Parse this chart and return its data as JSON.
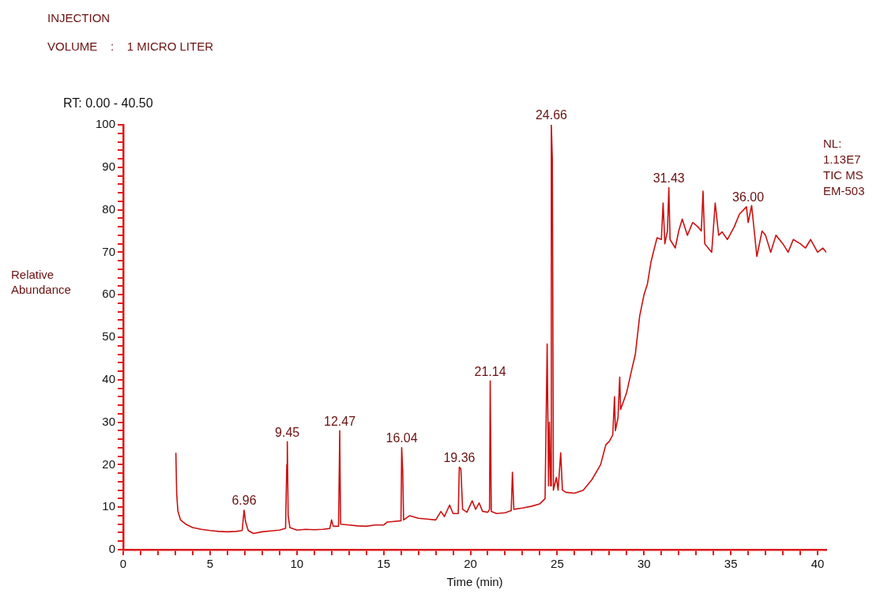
{
  "chart_data": {
    "type": "line",
    "title": "INJECTION",
    "subtitle": "VOLUME    :    1 MICRO LITER",
    "xlabel": "Time (min)",
    "ylabel": "Relative Abundance",
    "xlim": [
      0,
      40.5
    ],
    "ylim": [
      0,
      100
    ],
    "xticks": [
      0,
      {
        "value": 1,
        "label": null
      },
      {
        "value": 2,
        "label": null
      },
      {
        "value": 3,
        "label": null
      },
      {
        "value": 4,
        "label": null
      },
      5,
      {
        "value": 6,
        "label": null
      },
      {
        "value": 7,
        "label": null
      },
      {
        "value": 8,
        "label": null
      },
      {
        "value": 9,
        "label": null
      },
      10,
      {
        "value": 11,
        "label": null
      },
      {
        "value": 12,
        "label": null
      },
      {
        "value": 13,
        "label": null
      },
      {
        "value": 14,
        "label": null
      },
      15,
      {
        "value": 16,
        "label": null
      },
      {
        "value": 17,
        "label": null
      },
      {
        "value": 18,
        "label": null
      },
      {
        "value": 19,
        "label": null
      },
      20,
      {
        "value": 21,
        "label": null
      },
      {
        "value": 22,
        "label": null
      },
      {
        "value": 23,
        "label": null
      },
      {
        "value": 24,
        "label": null
      },
      25,
      {
        "value": 26,
        "label": null
      },
      {
        "value": 27,
        "label": null
      },
      {
        "value": 28,
        "label": null
      },
      {
        "value": 29,
        "label": null
      },
      30,
      {
        "value": 31,
        "label": null
      },
      {
        "value": 32,
        "label": null
      },
      {
        "value": 33,
        "label": null
      },
      {
        "value": 34,
        "label": null
      },
      35,
      {
        "value": 36,
        "label": null
      },
      {
        "value": 37,
        "label": null
      },
      {
        "value": 38,
        "label": null
      },
      {
        "value": 39,
        "label": null
      },
      40
    ],
    "yticks": [
      0,
      {
        "value": 2,
        "label": null
      },
      {
        "value": 4,
        "label": null
      },
      {
        "value": 6,
        "label": null
      },
      {
        "value": 8,
        "label": null
      },
      10,
      {
        "value": 12,
        "label": null
      },
      {
        "value": 14,
        "label": null
      },
      {
        "value": 16,
        "label": null
      },
      {
        "value": 18,
        "label": null
      },
      20,
      {
        "value": 22,
        "label": null
      },
      {
        "value": 24,
        "label": null
      },
      {
        "value": 26,
        "label": null
      },
      {
        "value": 28,
        "label": null
      },
      30,
      {
        "value": 32,
        "label": null
      },
      {
        "value": 34,
        "label": null
      },
      {
        "value": 36,
        "label": null
      },
      {
        "value": 38,
        "label": null
      },
      40,
      {
        "value": 42,
        "label": null
      },
      {
        "value": 44,
        "label": null
      },
      {
        "value": 46,
        "label": null
      },
      {
        "value": 48,
        "label": null
      },
      50,
      {
        "value": 52,
        "label": null
      },
      {
        "value": 54,
        "label": null
      },
      {
        "value": 56,
        "label": null
      },
      {
        "value": 58,
        "label": null
      },
      60,
      {
        "value": 62,
        "label": null
      },
      {
        "value": 64,
        "label": null
      },
      {
        "value": 66,
        "label": null
      },
      {
        "value": 68,
        "label": null
      },
      70,
      {
        "value": 72,
        "label": null
      },
      {
        "value": 74,
        "label": null
      },
      {
        "value": 76,
        "label": null
      },
      {
        "value": 78,
        "label": null
      },
      80,
      {
        "value": 82,
        "label": null
      },
      {
        "value": 84,
        "label": null
      },
      {
        "value": 86,
        "label": null
      },
      {
        "value": 88,
        "label": null
      },
      90,
      {
        "value": 92,
        "label": null
      },
      {
        "value": 94,
        "label": null
      },
      {
        "value": 96,
        "label": null
      },
      {
        "value": 98,
        "label": null
      },
      100
    ],
    "series": [
      {
        "color": "#cc1010",
        "x": [
          3.03,
          3.08,
          3.15,
          3.3,
          3.6,
          4.0,
          4.5,
          5.0,
          5.5,
          6.0,
          6.5,
          6.85,
          6.96,
          7.05,
          7.2,
          7.5,
          8.0,
          8.5,
          9.0,
          9.35,
          9.42,
          9.45,
          9.5,
          9.6,
          10.0,
          10.5,
          11.0,
          11.5,
          11.9,
          12.0,
          12.1,
          12.4,
          12.45,
          12.47,
          12.52,
          13.0,
          13.5,
          14.0,
          14.5,
          15.0,
          15.2,
          15.5,
          16.0,
          16.04,
          16.1,
          16.15,
          16.5,
          17.0,
          17.5,
          18.0,
          18.3,
          18.5,
          18.8,
          19.0,
          19.3,
          19.36,
          19.45,
          19.55,
          19.8,
          20.1,
          20.3,
          20.5,
          20.7,
          21.0,
          21.1,
          21.14,
          21.2,
          21.5,
          22.0,
          22.35,
          22.42,
          22.5,
          23.0,
          23.5,
          24.0,
          24.3,
          24.42,
          24.5,
          24.55,
          24.62,
          24.66,
          24.72,
          24.78,
          24.95,
          25.05,
          25.2,
          25.3,
          25.5,
          26.0,
          26.5,
          27.0,
          27.5,
          27.8,
          28.0,
          28.2,
          28.3,
          28.35,
          28.5,
          28.6,
          28.65,
          29.0,
          29.3,
          29.5,
          29.75,
          30.0,
          30.2,
          30.4,
          30.6,
          30.75,
          31.0,
          31.1,
          31.2,
          31.35,
          31.43,
          31.5,
          31.8,
          32.0,
          32.2,
          32.5,
          32.8,
          33.1,
          33.3,
          33.4,
          33.5,
          33.9,
          34.1,
          34.3,
          34.5,
          34.8,
          35.2,
          35.5,
          35.9,
          36.0,
          36.2,
          36.5,
          36.8,
          37.0,
          37.3,
          37.6,
          38.0,
          38.3,
          38.6,
          39.0,
          39.3,
          39.6,
          40.0,
          40.3,
          40.5
        ],
        "values": [
          22.8,
          13,
          9,
          7,
          6,
          5.2,
          4.8,
          4.5,
          4.3,
          4.2,
          4.3,
          4.5,
          9.3,
          6.5,
          4.5,
          3.8,
          4.2,
          4.4,
          4.6,
          5.0,
          20,
          25.4,
          8,
          5.2,
          4.6,
          4.8,
          4.7,
          4.8,
          5.0,
          7,
          5.5,
          5.5,
          20.5,
          28,
          6,
          5.8,
          5.6,
          5.5,
          5.8,
          5.8,
          6.5,
          6.6,
          6.8,
          24,
          18.5,
          7,
          8,
          7.4,
          7.2,
          7.0,
          9,
          7.8,
          10.5,
          8.5,
          8.5,
          19.4,
          19,
          9.5,
          8.8,
          11.5,
          9.5,
          11,
          9,
          8.8,
          9.5,
          39.7,
          9,
          8.5,
          8.7,
          9.2,
          18.2,
          9.5,
          9.8,
          10.2,
          10.8,
          12,
          48.4,
          15,
          30,
          15,
          100,
          91.8,
          14,
          17,
          14,
          22.8,
          14,
          13.5,
          13.3,
          14,
          16.5,
          20,
          24.7,
          25.5,
          27,
          36,
          28,
          31,
          40.6,
          33,
          37,
          42.5,
          46,
          55,
          60,
          62.6,
          67.7,
          71,
          73.4,
          73,
          81.6,
          72,
          75,
          85.2,
          73,
          71,
          75,
          77.8,
          74,
          77,
          76,
          75,
          84.4,
          72,
          70,
          81.6,
          74,
          74.8,
          73,
          76,
          79,
          80.7,
          77,
          81,
          69,
          75,
          74,
          70,
          74,
          72,
          70,
          73,
          72,
          71,
          73,
          70,
          71,
          70
        ]
      }
    ],
    "annotations": [
      "RT: 0.00 - 40.50",
      "NL: 1.13E7 TIC MS EM-503",
      {
        "text": "6.96",
        "x": 6.96,
        "y": 9.3
      },
      {
        "text": "9.45",
        "x": 9.45,
        "y": 25.4
      },
      {
        "text": "12.47",
        "x": 12.47,
        "y": 28
      },
      {
        "text": "16.04",
        "x": 16.04,
        "y": 24
      },
      {
        "text": "19.36",
        "x": 19.36,
        "y": 19.4
      },
      {
        "text": "21.14",
        "x": 21.14,
        "y": 39.7
      },
      {
        "text": "24.66",
        "x": 24.66,
        "y": 100
      },
      {
        "text": "31.43",
        "x": 31.43,
        "y": 85.2
      },
      {
        "text": "36.00",
        "x": 36.0,
        "y": 80.7
      }
    ]
  }
}
